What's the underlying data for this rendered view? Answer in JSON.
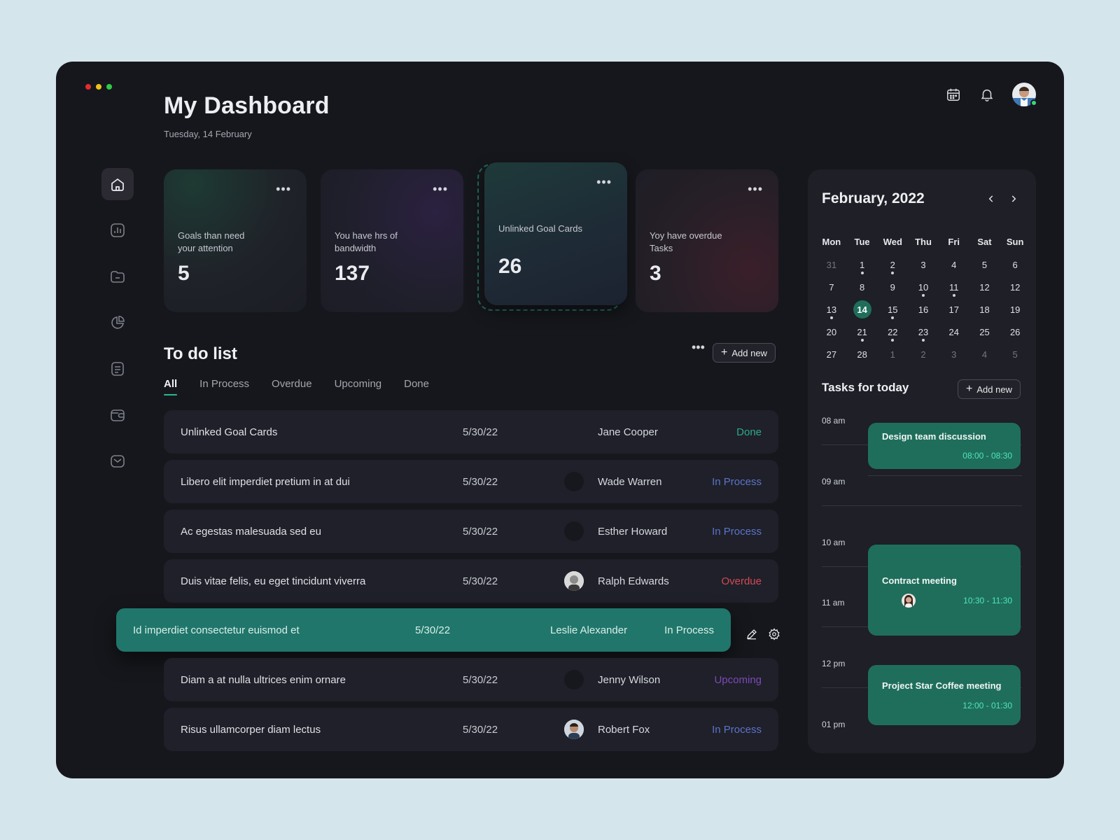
{
  "window": {
    "traffic_colors": [
      "#e22d2d",
      "#eec21a",
      "#2ecb45"
    ]
  },
  "header": {
    "title": "My Dashboard",
    "date": "Tuesday, 14 February",
    "icons": [
      "calendar-icon",
      "bell-icon",
      "avatar"
    ]
  },
  "sidebar": {
    "items": [
      {
        "icon": "home-icon",
        "active": true
      },
      {
        "icon": "chart-icon",
        "active": false
      },
      {
        "icon": "folder-icon",
        "active": false
      },
      {
        "icon": "pie-chart-icon",
        "active": false
      },
      {
        "icon": "document-icon",
        "active": false
      },
      {
        "icon": "wallet-icon",
        "active": false
      },
      {
        "icon": "mail-icon",
        "active": false
      }
    ]
  },
  "stats": [
    {
      "label": "Goals than need your attention",
      "value": "5",
      "more": "•••"
    },
    {
      "label": "You have hrs of bandwidth",
      "value": "137",
      "more": "•••"
    },
    {
      "label": "Unlinked Goal Cards",
      "value": "26",
      "more": "•••"
    },
    {
      "label": "Yoy have overdue Tasks",
      "value": "3",
      "more": "•••"
    }
  ],
  "todo": {
    "title": "To do list",
    "more": "•••",
    "add_label": "Add new",
    "tabs": [
      "All",
      "In Process",
      "Overdue",
      "Upcoming",
      "Done"
    ],
    "active_tab": "All",
    "rows": [
      {
        "title": "Unlinked Goal Cards",
        "date": "5/30/22",
        "assignee": "Jane Cooper",
        "status": "Done",
        "status_color": "#2fa98a",
        "avatar": false
      },
      {
        "title": "Libero elit imperdiet pretium in at dui",
        "date": "5/30/22",
        "assignee": "Wade Warren",
        "status": "In Process",
        "status_color": "#5a74c9",
        "avatar": true
      },
      {
        "title": "Ac egestas malesuada sed eu",
        "date": "5/30/22",
        "assignee": "Esther Howard",
        "status": "In Process",
        "status_color": "#5a74c9",
        "avatar": true
      },
      {
        "title": "Duis vitae felis, eu eget tincidunt viverra",
        "date": "5/30/22",
        "assignee": "Ralph Edwards",
        "status": "Overdue",
        "status_color": "#d14a55",
        "avatar": true
      },
      {
        "title": "Id imperdiet consectetur euismod et",
        "date": "5/30/22",
        "assignee": "Leslie Alexander",
        "status": "In Process",
        "status_color": "#d9efea",
        "avatar": false,
        "highlighted": true
      },
      {
        "title": "Diam a at nulla ultrices enim ornare",
        "date": "5/30/22",
        "assignee": "Jenny Wilson",
        "status": "Upcoming",
        "status_color": "#7b49b8",
        "avatar": true
      },
      {
        "title": "Risus ullamcorper diam lectus",
        "date": "5/30/22",
        "assignee": "Robert Fox",
        "status": "In Process",
        "status_color": "#5a74c9",
        "avatar": true
      }
    ]
  },
  "calendar": {
    "title": "February, 2022",
    "weekdays": [
      "Mon",
      "Tue",
      "Wed",
      "Thu",
      "Fri",
      "Sat",
      "Sun"
    ],
    "weeks": [
      [
        {
          "d": "31",
          "m": true
        },
        {
          "d": "1",
          "e": true
        },
        {
          "d": "2",
          "e": true
        },
        {
          "d": "3"
        },
        {
          "d": "4"
        },
        {
          "d": "5"
        },
        {
          "d": "6"
        }
      ],
      [
        {
          "d": "7"
        },
        {
          "d": "8"
        },
        {
          "d": "9"
        },
        {
          "d": "10",
          "e": true
        },
        {
          "d": "11",
          "e": true
        },
        {
          "d": "12"
        },
        {
          "d": "12"
        }
      ],
      [
        {
          "d": "13",
          "e": true
        },
        {
          "d": "14",
          "t": true
        },
        {
          "d": "15",
          "e": true
        },
        {
          "d": "16"
        },
        {
          "d": "17"
        },
        {
          "d": "18"
        },
        {
          "d": "19"
        }
      ],
      [
        {
          "d": "20"
        },
        {
          "d": "21",
          "e": true
        },
        {
          "d": "22",
          "e": true
        },
        {
          "d": "23",
          "e": true
        },
        {
          "d": "24"
        },
        {
          "d": "25"
        },
        {
          "d": "26"
        }
      ],
      [
        {
          "d": "27"
        },
        {
          "d": "28"
        },
        {
          "d": "1",
          "m": true
        },
        {
          "d": "2",
          "m": true
        },
        {
          "d": "3",
          "m": true
        },
        {
          "d": "4",
          "m": true
        },
        {
          "d": "5",
          "m": true
        }
      ]
    ]
  },
  "tasks_today": {
    "title": "Tasks for today",
    "add_label": "Add new",
    "times": [
      "08 am",
      "09 am",
      "10 am",
      "11 am",
      "12 pm",
      "01 pm"
    ],
    "events": [
      {
        "title": "Design team discussion",
        "time": "08:00 - 08:30"
      },
      {
        "title": "Contract meeting",
        "time": "10:30 - 11:30"
      },
      {
        "title": "Project Star Coffee meeting",
        "time": "12:00 - 01:30"
      }
    ]
  }
}
